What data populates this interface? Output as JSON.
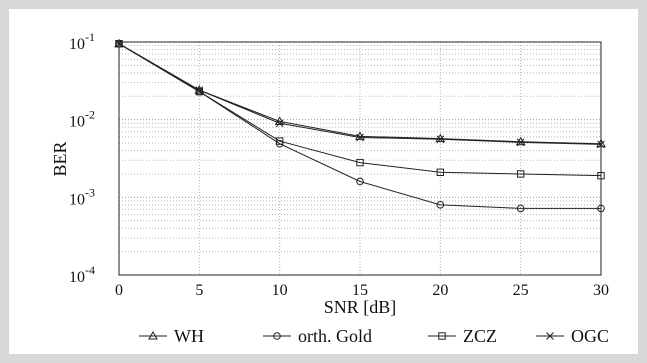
{
  "chart_data": {
    "type": "line",
    "title": "",
    "xlabel": "SNR [dB]",
    "ylabel": "BER",
    "x": [
      0,
      5,
      10,
      15,
      20,
      25,
      30
    ],
    "xlim": [
      0,
      30
    ],
    "ylim": [
      0.0001,
      0.1
    ],
    "yscale": "log",
    "xticks": [
      "0",
      "5",
      "10",
      "15",
      "20",
      "25",
      "30"
    ],
    "yticks": [
      {
        "base": "10",
        "exp": "-1"
      },
      {
        "base": "10",
        "exp": "-2"
      },
      {
        "base": "10",
        "exp": "-3"
      },
      {
        "base": "10",
        "exp": "-4"
      }
    ],
    "grid": true,
    "legend_position": "bottom",
    "series": [
      {
        "name": "WH",
        "marker": "triangle",
        "values": [
          0.095,
          0.024,
          0.0095,
          0.0061,
          0.0057,
          0.0052,
          0.0049
        ]
      },
      {
        "name": "orth. Gold",
        "marker": "circle",
        "values": [
          0.095,
          0.023,
          0.0049,
          0.0016,
          0.0008,
          0.00072,
          0.00072
        ]
      },
      {
        "name": "ZCZ",
        "marker": "square",
        "values": [
          0.095,
          0.023,
          0.0053,
          0.0028,
          0.0021,
          0.002,
          0.0019
        ]
      },
      {
        "name": "OGC",
        "marker": "x",
        "values": [
          0.095,
          0.024,
          0.009,
          0.0059,
          0.0056,
          0.0051,
          0.0048
        ]
      }
    ]
  }
}
